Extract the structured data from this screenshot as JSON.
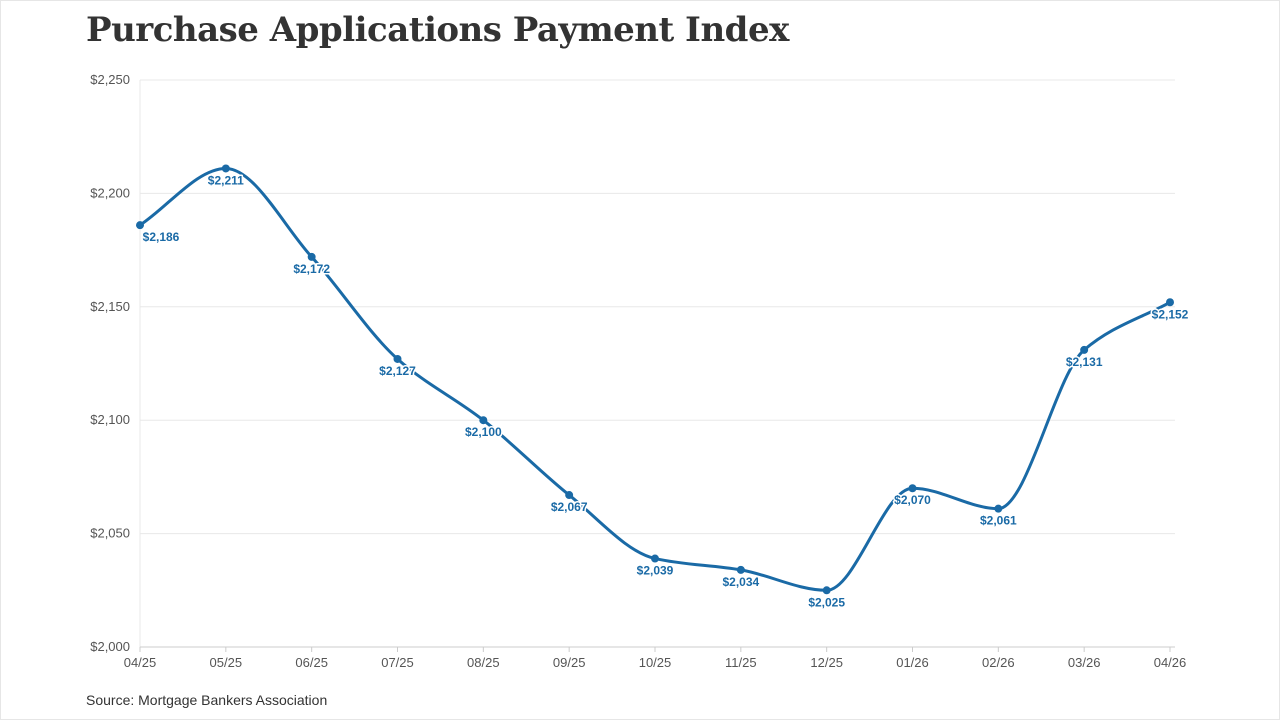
{
  "chart_data": {
    "type": "line",
    "title": "Purchase Applications Payment Index",
    "source": "Source: Mortgage Bankers Association",
    "categories": [
      "04/25",
      "05/25",
      "06/25",
      "07/25",
      "08/25",
      "09/25",
      "10/25",
      "11/25",
      "12/25",
      "01/26",
      "02/26",
      "03/26",
      "04/26"
    ],
    "series": [
      {
        "values": [
          2186,
          2211,
          2172,
          2127,
          2100,
          2067,
          2039,
          2034,
          2025,
          2070,
          2061,
          2131,
          2152
        ],
        "labels": [
          "$2,186",
          "$2,211",
          "$2,172",
          "$2,127",
          "$2,100",
          "$2,067",
          "$2,039",
          "$2,034",
          "$2,025",
          "$2,070",
          "$2,061",
          "$2,131",
          "$2,152"
        ]
      }
    ],
    "ylim": [
      2000,
      2250
    ],
    "yticks": [
      2000,
      2050,
      2100,
      2150,
      2200,
      2250
    ],
    "ytick_labels": [
      "$2,000",
      "$2,050",
      "$2,100",
      "$2,150",
      "$2,200",
      "$2,250"
    ],
    "xlabel": "",
    "ylabel": "",
    "grid": true,
    "legend": "none",
    "colors": {
      "line": "#1a6aa6",
      "grid": "#e8e8e8",
      "axis": "#cccccc"
    }
  }
}
